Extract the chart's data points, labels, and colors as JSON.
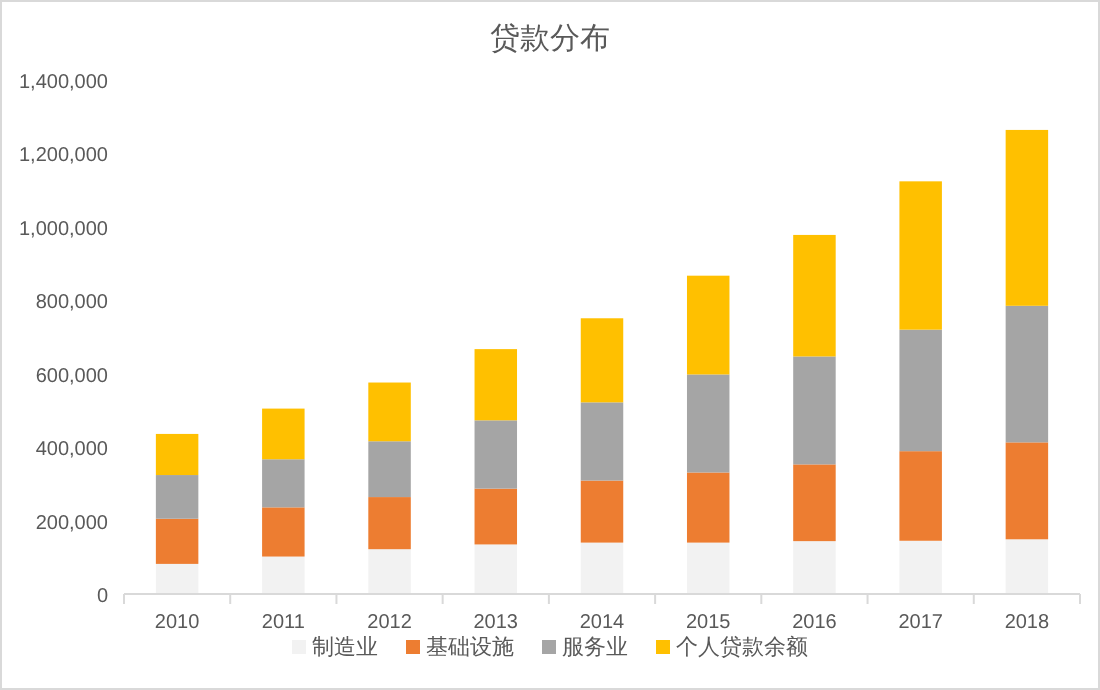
{
  "chart_data": {
    "type": "bar",
    "stacked": true,
    "title": "贷款分布",
    "categories": [
      "2010",
      "2011",
      "2012",
      "2013",
      "2014",
      "2015",
      "2016",
      "2017",
      "2018"
    ],
    "series": [
      {
        "name": "制造业",
        "color": "#f2f2f2",
        "values": [
          82000,
          102000,
          122000,
          135000,
          140000,
          140000,
          144000,
          145000,
          149000
        ]
      },
      {
        "name": "基础设施",
        "color": "#ed7d31",
        "values": [
          123000,
          134000,
          142000,
          152000,
          169000,
          191000,
          209000,
          244000,
          264000
        ]
      },
      {
        "name": "服务业",
        "color": "#a5a5a5",
        "values": [
          119000,
          131000,
          152000,
          186000,
          213000,
          267000,
          294000,
          331000,
          372000
        ]
      },
      {
        "name": "个人贷款余额",
        "color": "#ffc000",
        "values": [
          112000,
          138000,
          160000,
          194000,
          229000,
          269000,
          331000,
          404000,
          479000
        ]
      }
    ],
    "ylim": [
      0,
      1400000
    ],
    "yticks": [
      {
        "value": 0,
        "label": "0"
      },
      {
        "value": 200000,
        "label": "200,000"
      },
      {
        "value": 400000,
        "label": "400,000"
      },
      {
        "value": 600000,
        "label": "600,000"
      },
      {
        "value": 800000,
        "label": "800,000"
      },
      {
        "value": 1000000,
        "label": "1,000,000"
      },
      {
        "value": 1200000,
        "label": "1,200,000"
      },
      {
        "value": 1400000,
        "label": "1,400,000"
      }
    ],
    "grid": false,
    "legend": "bottom"
  }
}
